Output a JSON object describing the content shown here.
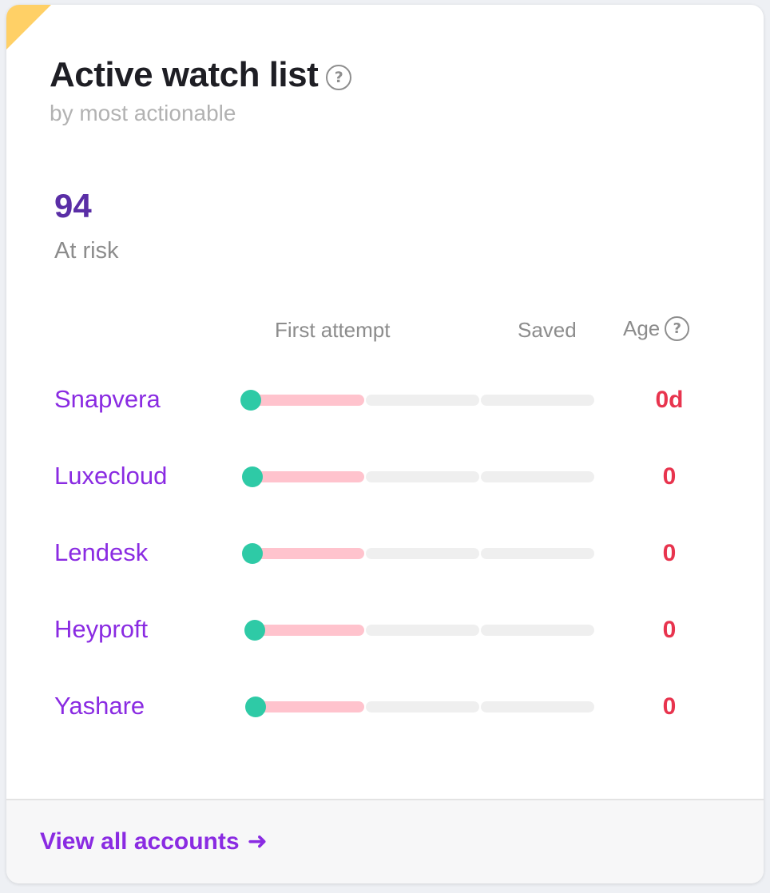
{
  "card": {
    "title": "Active watch list",
    "subtitle": "by most actionable",
    "metric_value": "94",
    "metric_label": "At risk"
  },
  "columns": {
    "first_attempt": "First attempt",
    "saved": "Saved",
    "age": "Age"
  },
  "icons": {
    "help": "help-icon",
    "arrow": "arrow-right-icon",
    "help_glyph": "?",
    "arrow_glyph": "➜"
  },
  "rows": [
    {
      "name": "Snapvera",
      "age": "0d",
      "progress": 0.0
    },
    {
      "name": "Luxecloud",
      "age": "0",
      "progress": 0.0
    },
    {
      "name": "Lendesk",
      "age": "0",
      "progress": 0.0
    },
    {
      "name": "Heyproft",
      "age": "0",
      "progress": 0.0
    },
    {
      "name": "Yashare",
      "age": "0",
      "progress": 0.0
    }
  ],
  "footer": {
    "link_label": "View all accounts"
  },
  "colors": {
    "accent": "#8a2be2",
    "metric": "#5a2ea6",
    "age_alert": "#e8344e",
    "progress_dot": "#2ecaa6",
    "first_segment": "#ffc3cd",
    "corner": "#ffd066"
  }
}
